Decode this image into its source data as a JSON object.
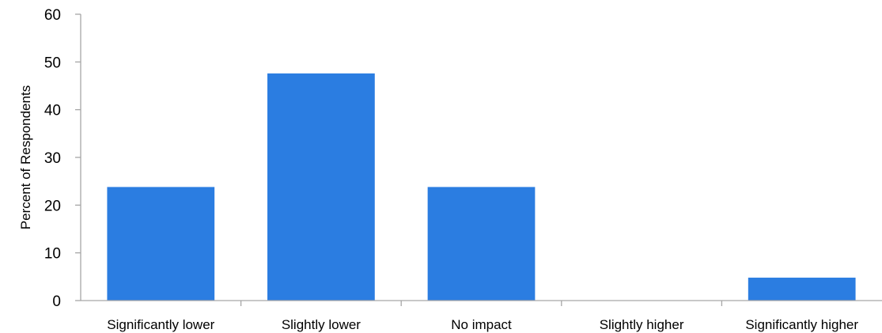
{
  "chart_data": {
    "type": "bar",
    "title": "",
    "xlabel": "",
    "ylabel": "Percent of Respondents",
    "categories": [
      "Significantly lower",
      "Slightly lower",
      "No impact",
      "Slightly higher",
      "Significantly higher"
    ],
    "values": [
      23.8,
      47.6,
      23.8,
      0,
      4.8
    ],
    "ylim": [
      0,
      60
    ],
    "yticks": [
      0,
      10,
      20,
      30,
      40,
      50,
      60
    ],
    "grid": false,
    "legend": "none",
    "bar_color": "#2b7de1",
    "axis_color": "#a6a6a6"
  }
}
